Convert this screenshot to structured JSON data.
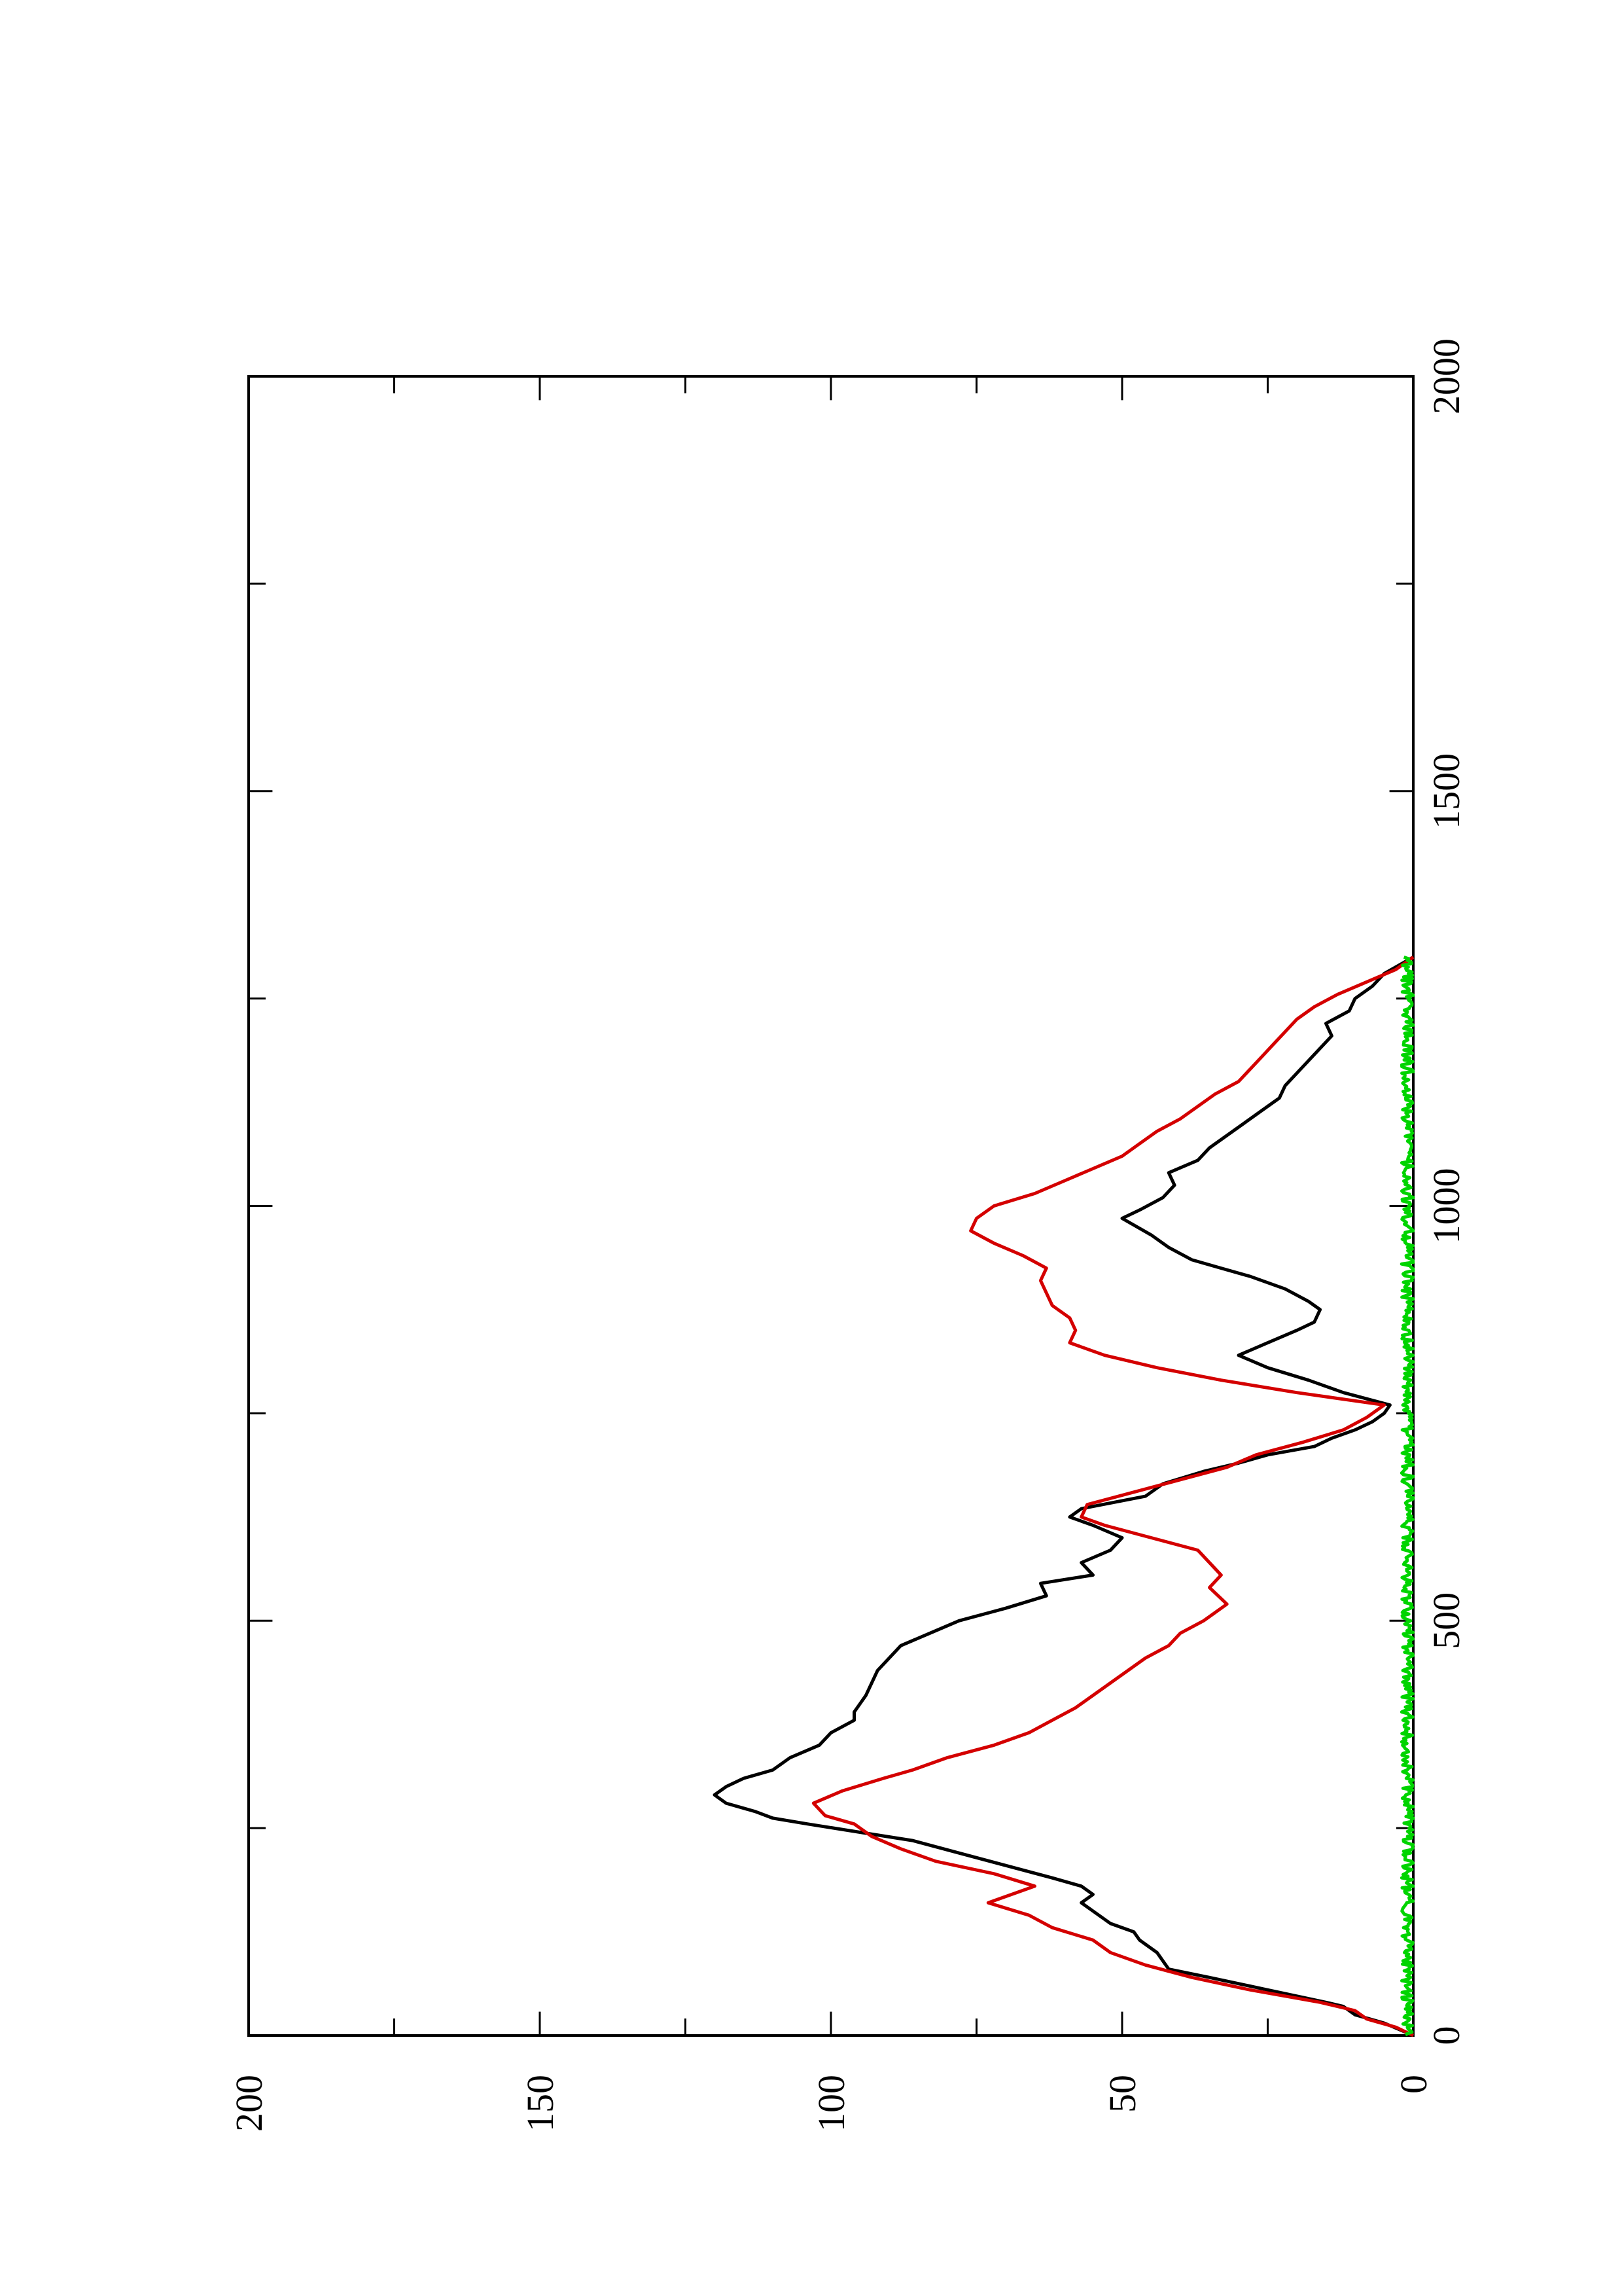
{
  "chart_data": {
    "type": "line",
    "title": "",
    "xlabel": "",
    "ylabel": "",
    "orientation": "rotated-90-ccw",
    "xlim": [
      0,
      2000
    ],
    "ylim": [
      0,
      200
    ],
    "x_ticks": [
      "0",
      "500",
      "1000",
      "1500",
      "2000"
    ],
    "y_ticks": [
      "0",
      "50",
      "100",
      "150",
      "200"
    ],
    "x_minor_step": 250,
    "y_minor_step": 25,
    "grid": false,
    "legend": "none",
    "series": [
      {
        "color": "#000000",
        "points": [
          [
            0,
            0
          ],
          [
            15,
            5
          ],
          [
            25,
            10
          ],
          [
            35,
            12
          ],
          [
            40,
            15
          ],
          [
            55,
            25
          ],
          [
            70,
            35
          ],
          [
            80,
            42
          ],
          [
            100,
            44
          ],
          [
            115,
            47
          ],
          [
            125,
            48
          ],
          [
            135,
            52
          ],
          [
            150,
            55
          ],
          [
            160,
            57
          ],
          [
            170,
            55
          ],
          [
            180,
            57
          ],
          [
            190,
            62
          ],
          [
            205,
            70
          ],
          [
            220,
            78
          ],
          [
            235,
            86
          ],
          [
            245,
            95
          ],
          [
            255,
            104
          ],
          [
            262,
            110
          ],
          [
            270,
            113
          ],
          [
            280,
            118
          ],
          [
            290,
            120
          ],
          [
            300,
            118
          ],
          [
            310,
            115
          ],
          [
            320,
            110
          ],
          [
            335,
            107
          ],
          [
            350,
            102
          ],
          [
            365,
            100
          ],
          [
            380,
            96
          ],
          [
            390,
            96
          ],
          [
            400,
            95
          ],
          [
            410,
            94
          ],
          [
            425,
            93
          ],
          [
            440,
            92
          ],
          [
            455,
            90
          ],
          [
            470,
            88
          ],
          [
            485,
            83
          ],
          [
            500,
            78
          ],
          [
            515,
            70
          ],
          [
            530,
            63
          ],
          [
            545,
            64
          ],
          [
            555,
            55
          ],
          [
            570,
            57
          ],
          [
            585,
            52
          ],
          [
            600,
            50
          ],
          [
            615,
            55
          ],
          [
            625,
            59
          ],
          [
            635,
            57
          ],
          [
            650,
            46
          ],
          [
            665,
            43
          ],
          [
            680,
            36
          ],
          [
            690,
            30
          ],
          [
            700,
            25
          ],
          [
            710,
            17
          ],
          [
            720,
            14
          ],
          [
            730,
            10
          ],
          [
            740,
            7
          ],
          [
            750,
            5
          ],
          [
            760,
            4
          ],
          [
            775,
            12
          ],
          [
            790,
            18
          ],
          [
            805,
            25
          ],
          [
            820,
            30
          ],
          [
            835,
            25
          ],
          [
            850,
            20
          ],
          [
            860,
            17
          ],
          [
            875,
            16
          ],
          [
            885,
            18
          ],
          [
            900,
            22
          ],
          [
            915,
            28
          ],
          [
            925,
            33
          ],
          [
            935,
            38
          ],
          [
            950,
            42
          ],
          [
            965,
            45
          ],
          [
            985,
            50
          ],
          [
            995,
            47
          ],
          [
            1010,
            43
          ],
          [
            1025,
            41
          ],
          [
            1040,
            42
          ],
          [
            1055,
            37
          ],
          [
            1070,
            35
          ],
          [
            1085,
            32
          ],
          [
            1100,
            29
          ],
          [
            1115,
            26
          ],
          [
            1130,
            23
          ],
          [
            1145,
            22
          ],
          [
            1160,
            20
          ],
          [
            1175,
            18
          ],
          [
            1190,
            16
          ],
          [
            1205,
            14
          ],
          [
            1220,
            15
          ],
          [
            1235,
            11
          ],
          [
            1250,
            10
          ],
          [
            1265,
            7
          ],
          [
            1280,
            5
          ],
          [
            1300,
            0
          ]
        ]
      },
      {
        "color": "#d40000",
        "points": [
          [
            0,
            0
          ],
          [
            10,
            3
          ],
          [
            20,
            8
          ],
          [
            30,
            10
          ],
          [
            40,
            16
          ],
          [
            55,
            28
          ],
          [
            70,
            38
          ],
          [
            85,
            46
          ],
          [
            100,
            52
          ],
          [
            115,
            55
          ],
          [
            130,
            62
          ],
          [
            145,
            66
          ],
          [
            160,
            73
          ],
          [
            180,
            65
          ],
          [
            195,
            72
          ],
          [
            210,
            82
          ],
          [
            225,
            88
          ],
          [
            240,
            93
          ],
          [
            255,
            96
          ],
          [
            265,
            101
          ],
          [
            280,
            103
          ],
          [
            295,
            98
          ],
          [
            310,
            91
          ],
          [
            320,
            86
          ],
          [
            335,
            80
          ],
          [
            350,
            72
          ],
          [
            365,
            66
          ],
          [
            380,
            62
          ],
          [
            395,
            58
          ],
          [
            410,
            55
          ],
          [
            425,
            52
          ],
          [
            440,
            49
          ],
          [
            455,
            46
          ],
          [
            470,
            42
          ],
          [
            485,
            40
          ],
          [
            500,
            36
          ],
          [
            520,
            32
          ],
          [
            540,
            35
          ],
          [
            555,
            33
          ],
          [
            570,
            35
          ],
          [
            585,
            37
          ],
          [
            600,
            45
          ],
          [
            615,
            53
          ],
          [
            625,
            57
          ],
          [
            640,
            56
          ],
          [
            655,
            48
          ],
          [
            670,
            40
          ],
          [
            685,
            32
          ],
          [
            700,
            27
          ],
          [
            715,
            19
          ],
          [
            730,
            12
          ],
          [
            745,
            8
          ],
          [
            760,
            5
          ],
          [
            775,
            20
          ],
          [
            790,
            33
          ],
          [
            805,
            44
          ],
          [
            820,
            53
          ],
          [
            835,
            59
          ],
          [
            850,
            58
          ],
          [
            865,
            59
          ],
          [
            880,
            62
          ],
          [
            895,
            63
          ],
          [
            910,
            64
          ],
          [
            925,
            63
          ],
          [
            940,
            67
          ],
          [
            955,
            72
          ],
          [
            970,
            76
          ],
          [
            985,
            75
          ],
          [
            1000,
            72
          ],
          [
            1015,
            65
          ],
          [
            1030,
            60
          ],
          [
            1045,
            55
          ],
          [
            1060,
            50
          ],
          [
            1075,
            47
          ],
          [
            1090,
            44
          ],
          [
            1105,
            40
          ],
          [
            1120,
            37
          ],
          [
            1135,
            34
          ],
          [
            1150,
            30
          ],
          [
            1165,
            28
          ],
          [
            1180,
            26
          ],
          [
            1195,
            24
          ],
          [
            1210,
            22
          ],
          [
            1225,
            20
          ],
          [
            1240,
            17
          ],
          [
            1255,
            13
          ],
          [
            1270,
            8
          ],
          [
            1285,
            3
          ],
          [
            1300,
            0
          ]
        ]
      },
      {
        "color": "#00d400",
        "noise_amplitude": 2,
        "points": [
          [
            0,
            0
          ],
          [
            1300,
            0
          ]
        ]
      }
    ]
  }
}
